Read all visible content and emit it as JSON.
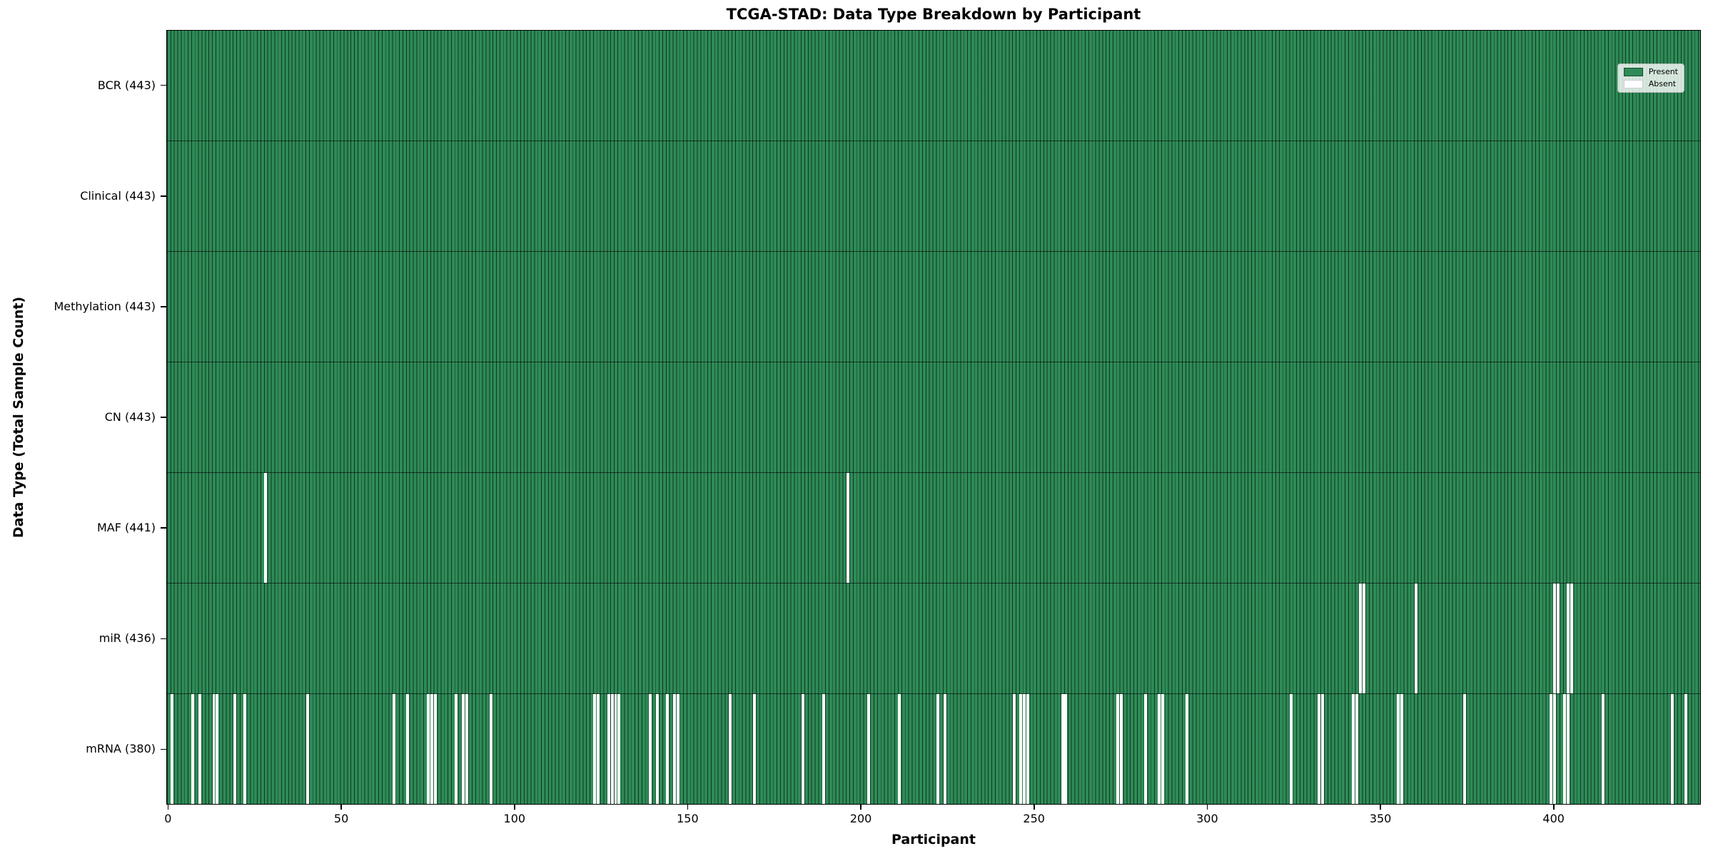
{
  "figure": {
    "title": "TCGA-STAD: Data Type Breakdown by Participant",
    "xlabel": "Participant",
    "ylabel": "Data Type (Total Sample Count)"
  },
  "legend": {
    "present_label": "Present",
    "absent_label": "Absent"
  },
  "colors": {
    "present": "#2E8B57",
    "absent": "#FFFFFF",
    "bar_edge": "#0A2818",
    "axis": "#000000"
  },
  "chart_data": {
    "type": "heatmap",
    "title": "TCGA-STAD: Data Type Breakdown by Participant",
    "xlabel": "Participant",
    "ylabel": "Data Type (Total Sample Count)",
    "total_participants": 443,
    "x_axis_range": [
      0,
      442
    ],
    "x_tick_values": [
      0,
      50,
      100,
      150,
      200,
      250,
      300,
      350,
      400
    ],
    "legend_position": "upper right",
    "legend_entries": [
      "Present",
      "Absent"
    ],
    "grid": false,
    "rows": [
      {
        "data_type": "BCR",
        "label": "BCR (443)",
        "present_count": 443,
        "absent_participants": []
      },
      {
        "data_type": "Clinical",
        "label": "Clinical (443)",
        "present_count": 443,
        "absent_participants": []
      },
      {
        "data_type": "Methylation",
        "label": "Methylation (443)",
        "present_count": 443,
        "absent_participants": []
      },
      {
        "data_type": "CN",
        "label": "CN (443)",
        "present_count": 443,
        "absent_participants": []
      },
      {
        "data_type": "MAF",
        "label": "MAF (441)",
        "present_count": 441,
        "absent_participants": [
          28,
          196
        ]
      },
      {
        "data_type": "miR",
        "label": "miR (436)",
        "present_count": 436,
        "absent_participants": [
          344,
          345,
          360,
          400,
          401,
          404,
          405
        ]
      },
      {
        "data_type": "mRNA",
        "label": "mRNA (380)",
        "present_count": 380,
        "absent_participants": [
          1,
          7,
          9,
          13,
          14,
          19,
          22,
          40,
          65,
          69,
          75,
          76,
          77,
          83,
          85,
          86,
          93,
          123,
          124,
          127,
          128,
          129,
          130,
          139,
          141,
          144,
          146,
          147,
          162,
          169,
          183,
          189,
          202,
          211,
          222,
          224,
          244,
          246,
          247,
          248,
          258,
          259,
          274,
          275,
          282,
          286,
          287,
          294,
          324,
          332,
          333,
          342,
          343,
          355,
          356,
          374,
          399,
          400,
          403,
          404,
          414,
          434,
          438
        ]
      }
    ]
  }
}
